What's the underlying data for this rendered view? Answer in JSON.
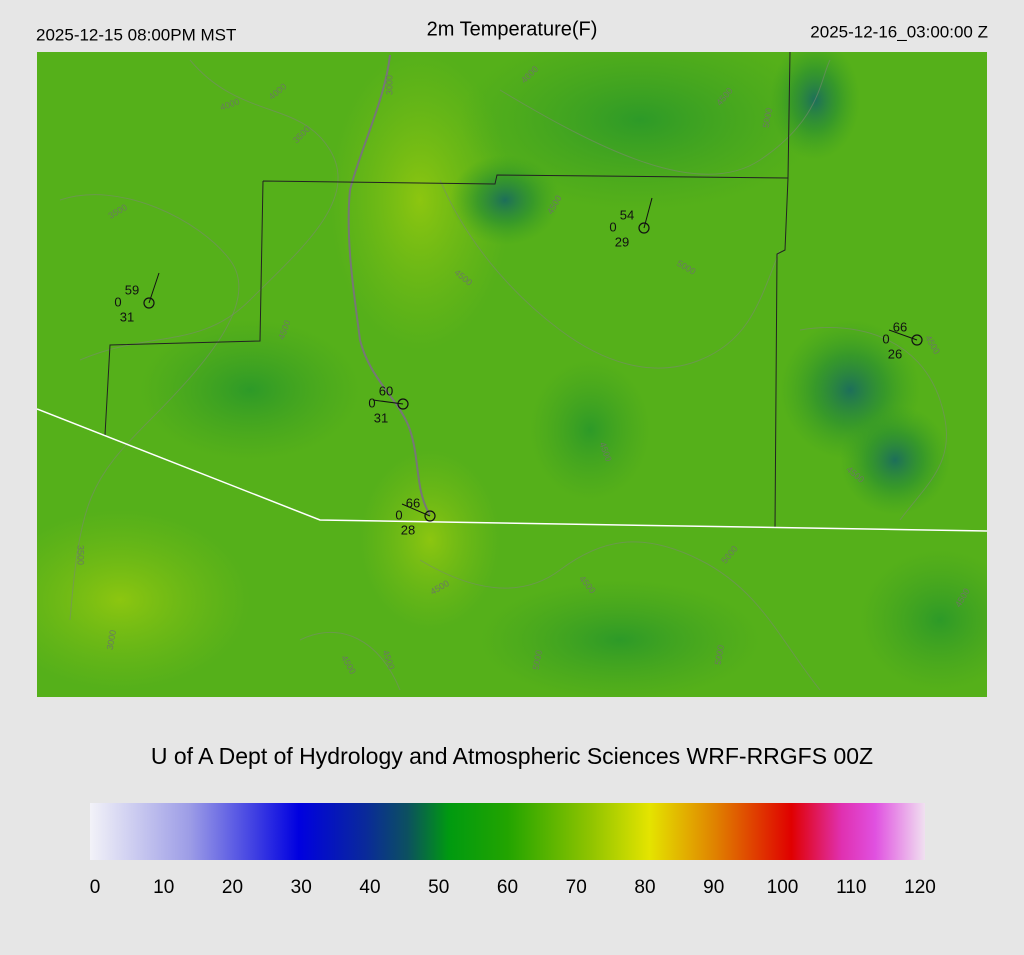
{
  "header": {
    "local_time": "2025-12-15 08:00PM MST",
    "title": "2m Temperature(F)",
    "valid_time": "2025-12-16_03:00:00 Z"
  },
  "stations": [
    {
      "temperature": 59,
      "wind": 0,
      "dewpoint": 31
    },
    {
      "temperature": 54,
      "wind": 0,
      "dewpoint": 29
    },
    {
      "temperature": 66,
      "wind": 0,
      "dewpoint": 26
    },
    {
      "temperature": 60,
      "wind": 0,
      "dewpoint": 31
    },
    {
      "temperature": 66,
      "wind": 0,
      "dewpoint": 28
    }
  ],
  "contour_labels": [
    "4000",
    "4000",
    "3500",
    "3000",
    "4000",
    "4500",
    "3500",
    "4500",
    "4500",
    "5000",
    "4500",
    "5000",
    "4500",
    "3500",
    "3000",
    "4500",
    "4500",
    "5000",
    "4500",
    "4500",
    "5000",
    "5000",
    "4500",
    "4500",
    "4500"
  ],
  "credit": "U of A Dept of Hydrology and Atmospheric Sciences WRF-RRGFS 00Z",
  "colorbar": {
    "ticks": [
      0,
      10,
      20,
      30,
      40,
      50,
      60,
      70,
      80,
      90,
      100,
      110,
      120
    ]
  }
}
